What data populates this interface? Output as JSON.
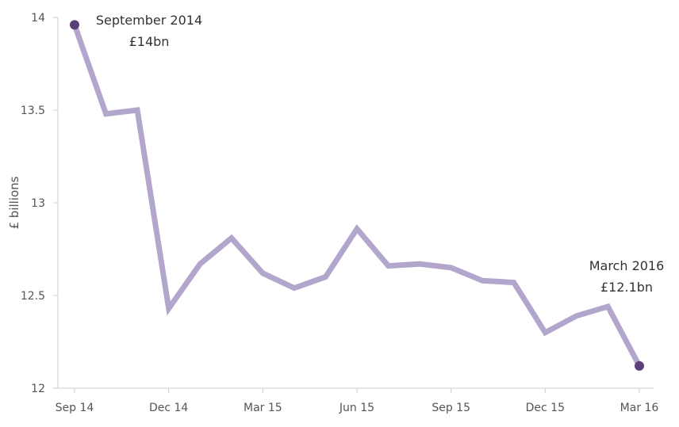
{
  "chart_data": {
    "type": "line",
    "ylabel": "£ billions",
    "xlabel": "",
    "ylim": [
      12,
      14
    ],
    "yticks": [
      12,
      12.5,
      13,
      13.5,
      14
    ],
    "grid": false,
    "x_tick_labels": [
      "Sep 14",
      "Dec 14",
      "Mar 15",
      "Jun 15",
      "Sep 15",
      "Dec 15",
      "Mar 16"
    ],
    "x_tick_positions": [
      0,
      3,
      6,
      9,
      12,
      15,
      18
    ],
    "line_color": "#b3a6cc",
    "marker_color": "#5b3f79",
    "series": [
      {
        "values": [
          13.96,
          13.48,
          13.5,
          12.43,
          12.67,
          12.81,
          12.62,
          12.54,
          12.6,
          12.86,
          12.66,
          12.67,
          12.65,
          12.58,
          12.57,
          12.3,
          12.39,
          12.44,
          12.12
        ]
      }
    ],
    "annotations": [
      {
        "line1": "September 2014",
        "line2": "£14bn",
        "index": 0
      },
      {
        "line1": "March 2016",
        "line2": "£12.1bn",
        "index": 18
      }
    ]
  }
}
